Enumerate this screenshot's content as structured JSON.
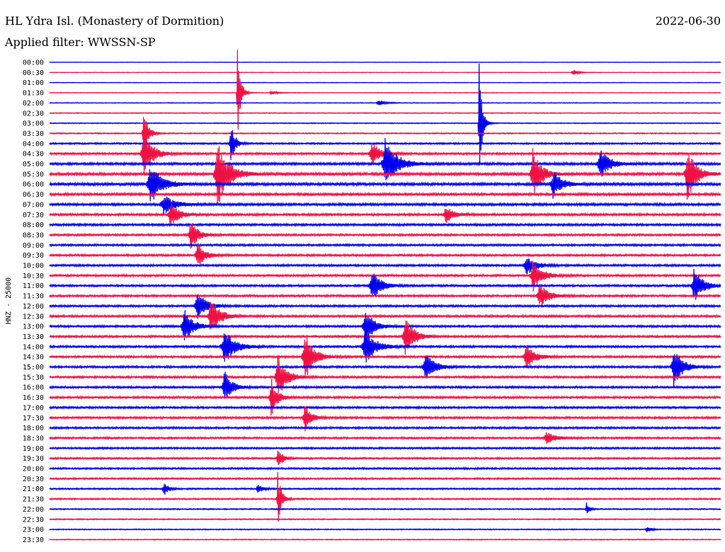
{
  "header": {
    "station": "HL Ydra Isl. (Monastery of Dormition)",
    "filter": "Applied filter: WWSSN-SP",
    "date": "2022-06-30"
  },
  "chart_data": {
    "type": "line",
    "title": "HL Ydra Isl. (Monastery of Dormition)",
    "subtitle": "Applied filter: WWSSN-SP",
    "ylabel": "HNZ - 25000",
    "xlabel": "",
    "row_labels": [
      "00:00",
      "00:30",
      "01:00",
      "01:30",
      "02:00",
      "02:30",
      "03:00",
      "03:30",
      "04:00",
      "04:30",
      "05:00",
      "05:30",
      "06:00",
      "06:30",
      "07:00",
      "07:30",
      "08:00",
      "08:30",
      "09:00",
      "09:30",
      "10:00",
      "10:30",
      "11:00",
      "11:30",
      "12:00",
      "12:30",
      "13:00",
      "13:30",
      "14:00",
      "14:30",
      "15:00",
      "15:30",
      "16:00",
      "16:30",
      "17:00",
      "17:30",
      "18:00",
      "18:30",
      "19:00",
      "19:30",
      "20:00",
      "20:30",
      "21:00",
      "21:30",
      "22:00",
      "22:30",
      "23:00",
      "23:30"
    ],
    "series": [
      {
        "color": "#0000ee",
        "rows": "even"
      },
      {
        "color": "#ee1144",
        "rows": "odd"
      }
    ],
    "noise_level": [
      0.25,
      0.25,
      0.25,
      0.3,
      0.35,
      0.4,
      0.45,
      0.55,
      0.8,
      1.0,
      1.2,
      1.3,
      1.3,
      1.2,
      1.2,
      1.1,
      1.1,
      1.0,
      1.0,
      1.0,
      1.0,
      1.0,
      1.0,
      1.0,
      1.0,
      1.0,
      1.0,
      1.0,
      1.0,
      1.0,
      1.0,
      1.0,
      1.0,
      1.0,
      1.0,
      1.0,
      0.95,
      0.9,
      0.9,
      0.85,
      0.85,
      0.8,
      0.75,
      0.7,
      0.6,
      0.55,
      0.5,
      0.45
    ],
    "events": [
      {
        "row": 1,
        "t": 0.78,
        "amp": 4,
        "w": 0.008
      },
      {
        "row": 3,
        "t": 0.33,
        "amp": 3,
        "w": 0.008
      },
      {
        "row": 3,
        "t": 0.28,
        "amp": 80,
        "w": 0.004
      },
      {
        "row": 4,
        "t": 0.49,
        "amp": 4,
        "w": 0.01
      },
      {
        "row": 6,
        "t": 0.64,
        "amp": 90,
        "w": 0.004
      },
      {
        "row": 7,
        "t": 0.14,
        "amp": 40,
        "w": 0.006
      },
      {
        "row": 8,
        "t": 0.27,
        "amp": 30,
        "w": 0.006
      },
      {
        "row": 9,
        "t": 0.14,
        "amp": 35,
        "w": 0.012
      },
      {
        "row": 9,
        "t": 0.48,
        "amp": 18,
        "w": 0.012
      },
      {
        "row": 10,
        "t": 0.82,
        "amp": 24,
        "w": 0.012
      },
      {
        "row": 10,
        "t": 0.5,
        "amp": 40,
        "w": 0.015
      },
      {
        "row": 11,
        "t": 0.25,
        "amp": 50,
        "w": 0.015
      },
      {
        "row": 11,
        "t": 0.72,
        "amp": 35,
        "w": 0.012
      },
      {
        "row": 11,
        "t": 0.95,
        "amp": 40,
        "w": 0.012
      },
      {
        "row": 12,
        "t": 0.15,
        "amp": 30,
        "w": 0.015
      },
      {
        "row": 12,
        "t": 0.75,
        "amp": 20,
        "w": 0.012
      },
      {
        "row": 14,
        "t": 0.17,
        "amp": 14,
        "w": 0.015
      },
      {
        "row": 15,
        "t": 0.18,
        "amp": 18,
        "w": 0.012
      },
      {
        "row": 15,
        "t": 0.59,
        "amp": 14,
        "w": 0.01
      },
      {
        "row": 17,
        "t": 0.21,
        "amp": 22,
        "w": 0.01
      },
      {
        "row": 19,
        "t": 0.22,
        "amp": 20,
        "w": 0.01
      },
      {
        "row": 20,
        "t": 0.71,
        "amp": 16,
        "w": 0.012
      },
      {
        "row": 21,
        "t": 0.72,
        "amp": 24,
        "w": 0.012
      },
      {
        "row": 22,
        "t": 0.48,
        "amp": 24,
        "w": 0.012
      },
      {
        "row": 22,
        "t": 0.96,
        "amp": 26,
        "w": 0.012
      },
      {
        "row": 23,
        "t": 0.73,
        "amp": 18,
        "w": 0.012
      },
      {
        "row": 24,
        "t": 0.22,
        "amp": 22,
        "w": 0.012
      },
      {
        "row": 25,
        "t": 0.24,
        "amp": 30,
        "w": 0.012
      },
      {
        "row": 26,
        "t": 0.2,
        "amp": 26,
        "w": 0.012
      },
      {
        "row": 26,
        "t": 0.47,
        "amp": 26,
        "w": 0.012
      },
      {
        "row": 27,
        "t": 0.53,
        "amp": 30,
        "w": 0.012
      },
      {
        "row": 28,
        "t": 0.26,
        "amp": 26,
        "w": 0.015
      },
      {
        "row": 28,
        "t": 0.47,
        "amp": 24,
        "w": 0.015
      },
      {
        "row": 29,
        "t": 0.38,
        "amp": 36,
        "w": 0.012
      },
      {
        "row": 29,
        "t": 0.71,
        "amp": 18,
        "w": 0.012
      },
      {
        "row": 30,
        "t": 0.56,
        "amp": 22,
        "w": 0.012
      },
      {
        "row": 30,
        "t": 0.93,
        "amp": 28,
        "w": 0.012
      },
      {
        "row": 31,
        "t": 0.34,
        "amp": 32,
        "w": 0.012
      },
      {
        "row": 32,
        "t": 0.26,
        "amp": 26,
        "w": 0.01
      },
      {
        "row": 33,
        "t": 0.33,
        "amp": 28,
        "w": 0.008
      },
      {
        "row": 35,
        "t": 0.38,
        "amp": 22,
        "w": 0.008
      },
      {
        "row": 37,
        "t": 0.74,
        "amp": 10,
        "w": 0.012
      },
      {
        "row": 39,
        "t": 0.34,
        "amp": 18,
        "w": 0.006
      },
      {
        "row": 42,
        "t": 0.17,
        "amp": 10,
        "w": 0.006
      },
      {
        "row": 42,
        "t": 0.31,
        "amp": 8,
        "w": 0.006
      },
      {
        "row": 43,
        "t": 0.34,
        "amp": 40,
        "w": 0.005
      },
      {
        "row": 44,
        "t": 0.8,
        "amp": 10,
        "w": 0.004
      },
      {
        "row": 46,
        "t": 0.89,
        "amp": 5,
        "w": 0.006
      }
    ]
  }
}
